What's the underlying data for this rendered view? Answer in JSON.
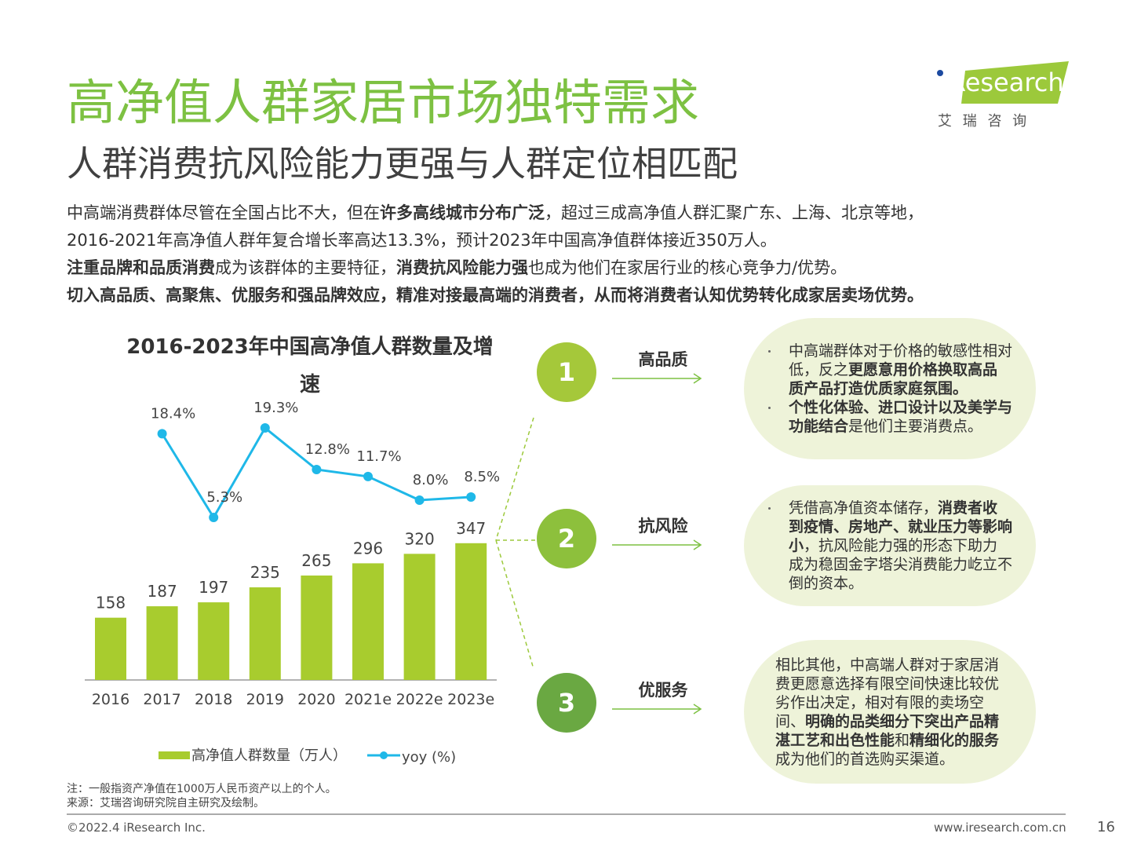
{
  "header": {
    "title": "高净值人群家居市场独特需求",
    "subtitle": "人群消费抗风险能力更强与人群定位相匹配",
    "logo": "iResearch",
    "logo_sub": "艾 瑞 咨 询"
  },
  "intro": [
    [
      {
        "text": "中高端消费群体尽管在全国占比不大，但在",
        "bold": false
      },
      {
        "text": "许多高线城市分布广泛",
        "bold": true
      },
      {
        "text": "，超过三成高净值人群汇聚广东、上海、北京等地，",
        "bold": false
      }
    ],
    [
      {
        "text": "2016-2021年高净值人群年复合增长率高达13.3%，预计2023年中国高净值群体接近350万人。",
        "bold": false
      }
    ],
    [
      {
        "text": "注重品牌和品质消费",
        "bold": true
      },
      {
        "text": "成为该群体的主要特征，",
        "bold": false
      },
      {
        "text": "消费抗风险能力强",
        "bold": true
      },
      {
        "text": "也成为他们在家居行业的核心竞争力/优势。",
        "bold": false
      }
    ],
    [
      {
        "text": "切入高品质、高聚焦、优服务和强品牌效应，精准对接最高端的消费者，从而将消费者认知优势转化成家居卖场优势。",
        "bold": true
      }
    ]
  ],
  "chart_data": {
    "type": "bar",
    "title": "2016-2023年中国高净值人群数量及增速",
    "categories": [
      "2016",
      "2017",
      "2018",
      "2019",
      "2020",
      "2021e",
      "2022e",
      "2023e"
    ],
    "series": [
      {
        "name": "高净值人群数量（万人）",
        "type": "bar",
        "color": "#a8cc2e",
        "values": [
          158,
          187,
          197,
          235,
          265,
          296,
          320,
          347
        ]
      },
      {
        "name": "yoy (%)",
        "type": "line",
        "color": "#1fb8e8",
        "values": [
          null,
          18.4,
          5.3,
          19.3,
          12.8,
          11.7,
          8.0,
          8.5
        ],
        "value_labels": [
          null,
          "18.4%",
          "5.3%",
          "19.3%",
          "12.8%",
          "11.7%",
          "8.0%",
          "8.5%"
        ]
      }
    ]
  },
  "features": [
    {
      "number": "1",
      "label": "高品质",
      "color": "#a5c83a",
      "bulleted": true,
      "points": [
        [
          {
            "text": "中高端群体对于价格的敏感性相对低，反之",
            "bold": false
          },
          {
            "text": "更愿意用价格换取高品质产品打造优质家庭氛围。",
            "bold": true
          }
        ],
        [
          {
            "text": "个性化体验、进口设计以及美学与功能结合",
            "bold": true
          },
          {
            "text": "是他们主要消费点。",
            "bold": false
          }
        ]
      ]
    },
    {
      "number": "2",
      "label": "抗风险",
      "color": "#8dc03c",
      "bulleted": true,
      "points": [
        [
          {
            "text": "凭借高净值资本储存，",
            "bold": false
          },
          {
            "text": "消费者收到疫情、房地产、就业压力等影响小",
            "bold": true
          },
          {
            "text": "，抗风险能力强的形态下助力成为稳固金字塔尖消费能力屹立不倒的资本。",
            "bold": false
          }
        ]
      ]
    },
    {
      "number": "3",
      "label": "优服务",
      "color": "#6aa842",
      "bulleted": false,
      "points": [
        [
          {
            "text": "相比其他，中高端人群对于家居消费更愿意选择有限空间快速比较优劣作出决定，相对有限的卖场空间、",
            "bold": false
          },
          {
            "text": "明确的品类细分下突出产品精湛工艺和出色性能",
            "bold": true
          },
          {
            "text": "和",
            "bold": false
          },
          {
            "text": "精细化的服务",
            "bold": true
          },
          {
            "text": "成为他们的首选购买渠道。",
            "bold": false
          }
        ]
      ]
    }
  ],
  "notes": [
    "注：一般指资产净值在1000万人民币资产以上的个人。",
    "来源：艾瑞咨询研究院自主研究及绘制。"
  ],
  "footer": {
    "copyright": "©2022.4 iResearch Inc.",
    "url": "www.iresearch.com.cn",
    "page": "16"
  }
}
